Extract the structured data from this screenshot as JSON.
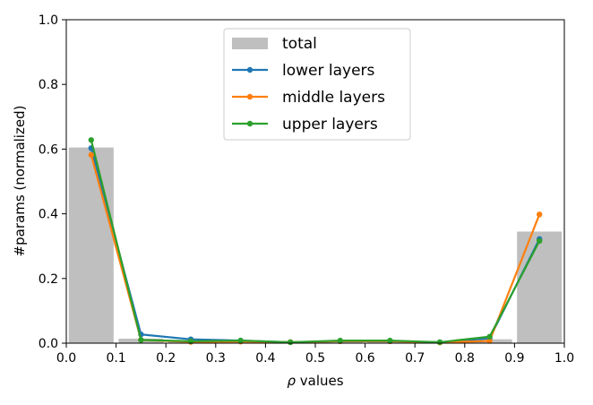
{
  "chart_data": {
    "type": "bar",
    "xlabel_symbol": "ρ",
    "xlabel_text": " values",
    "ylabel": "#params (normalized)",
    "xlim": [
      0.0,
      1.0
    ],
    "ylim": [
      0.0,
      1.0
    ],
    "xticks": [
      "0.0",
      "0.1",
      "0.2",
      "0.3",
      "0.4",
      "0.5",
      "0.6",
      "0.7",
      "0.8",
      "0.9",
      "1.0"
    ],
    "yticks": [
      "0.0",
      "0.2",
      "0.4",
      "0.6",
      "0.8",
      "1.0"
    ],
    "grid": false,
    "legend_position": "top-center",
    "bar_series": {
      "name": "total",
      "color": "#bfbfbf",
      "bins": [
        {
          "x0": 0.0,
          "x1": 0.1,
          "value": 0.605
        },
        {
          "x0": 0.1,
          "x1": 0.2,
          "value": 0.014
        },
        {
          "x0": 0.2,
          "x1": 0.3,
          "value": 0.008
        },
        {
          "x0": 0.3,
          "x1": 0.4,
          "value": 0.006
        },
        {
          "x0": 0.4,
          "x1": 0.5,
          "value": 0.003
        },
        {
          "x0": 0.5,
          "x1": 0.6,
          "value": 0.005
        },
        {
          "x0": 0.6,
          "x1": 0.7,
          "value": 0.005
        },
        {
          "x0": 0.7,
          "x1": 0.8,
          "value": 0.003
        },
        {
          "x0": 0.8,
          "x1": 0.9,
          "value": 0.012
        },
        {
          "x0": 0.9,
          "x1": 1.0,
          "value": 0.345
        }
      ]
    },
    "x": [
      0.05,
      0.15,
      0.25,
      0.35,
      0.45,
      0.55,
      0.65,
      0.75,
      0.85,
      0.95
    ],
    "series": [
      {
        "name": "lower layers",
        "color": "#1f77b4",
        "values": [
          0.603,
          0.027,
          0.012,
          0.008,
          0.003,
          0.006,
          0.006,
          0.003,
          0.015,
          0.322
        ]
      },
      {
        "name": "middle layers",
        "color": "#ff7f0e",
        "values": [
          0.582,
          0.01,
          0.004,
          0.005,
          0.003,
          0.006,
          0.006,
          0.002,
          0.007,
          0.398
        ]
      },
      {
        "name": "upper layers",
        "color": "#2ca02c",
        "values": [
          0.628,
          0.01,
          0.006,
          0.008,
          0.003,
          0.008,
          0.008,
          0.003,
          0.02,
          0.316
        ]
      }
    ]
  }
}
